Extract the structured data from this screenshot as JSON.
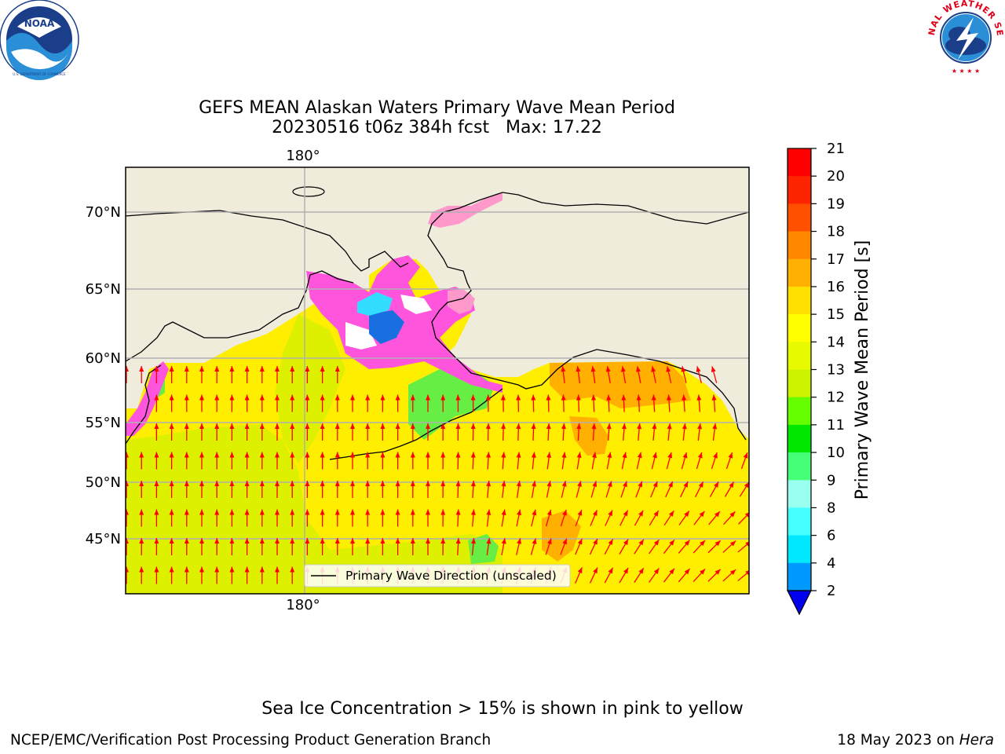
{
  "header": {
    "title_line1": "GEFS MEAN Alaskan Waters Primary Wave Mean Period",
    "title_line2": "20230516 t06z 384h fcst   Max: 17.22"
  },
  "logos": {
    "left": {
      "name": "NOAA",
      "ring_text": "NATIONAL OCEANIC AND ATMOSPHERIC ADMINISTRATION",
      "bottom_text": "U.S. DEPARTMENT OF COMMERCE"
    },
    "right": {
      "ring_text": "NATIONAL WEATHER SERVICE"
    }
  },
  "map": {
    "lon_label_top": "180°",
    "lon_label_bottom": "180°",
    "lat_labels": [
      "70°N",
      "65°N",
      "60°N",
      "55°N",
      "50°N",
      "45°N"
    ],
    "legend_label": "Primary Wave Direction (unscaled)",
    "colors": {
      "land": "#efecdc",
      "ocean_main": "#ffee00",
      "ocean_south": "#dcf000",
      "ocean_gulf": "#ffb000",
      "ice": "#ff55dd",
      "arrow": "#ff0000"
    }
  },
  "colorbar": {
    "label": "Primary Wave Mean Period [s]",
    "ticks": [
      "21",
      "20",
      "19",
      "18",
      "17",
      "16",
      "15",
      "14",
      "13",
      "12",
      "11",
      "10",
      "9",
      "8",
      "6",
      "4",
      "2"
    ],
    "colors": [
      "#ff0000",
      "#ff2400",
      "#ff5000",
      "#ff8800",
      "#ffb000",
      "#ffe000",
      "#ffff00",
      "#e8fa00",
      "#ccf200",
      "#66ff00",
      "#00e800",
      "#44ff77",
      "#99ffee",
      "#44ffff",
      "#00e8ff",
      "#0099ff",
      "#0033ff"
    ],
    "extend_color": "#0000ee"
  },
  "footer": {
    "ice_note": "Sea Ice Concentration > 15% is shown in pink to yellow",
    "credit": "NCEP/EMC/Verification Post Processing Product Generation Branch",
    "date": "18 May 2023 on",
    "machine": "Hera"
  },
  "chart_data": {
    "type": "heatmap",
    "variable": "Primary Wave Mean Period [s]",
    "vmin": 2,
    "vmax": 21,
    "max_value": 17.22,
    "overlay": "Primary Wave Direction (unscaled)"
  }
}
